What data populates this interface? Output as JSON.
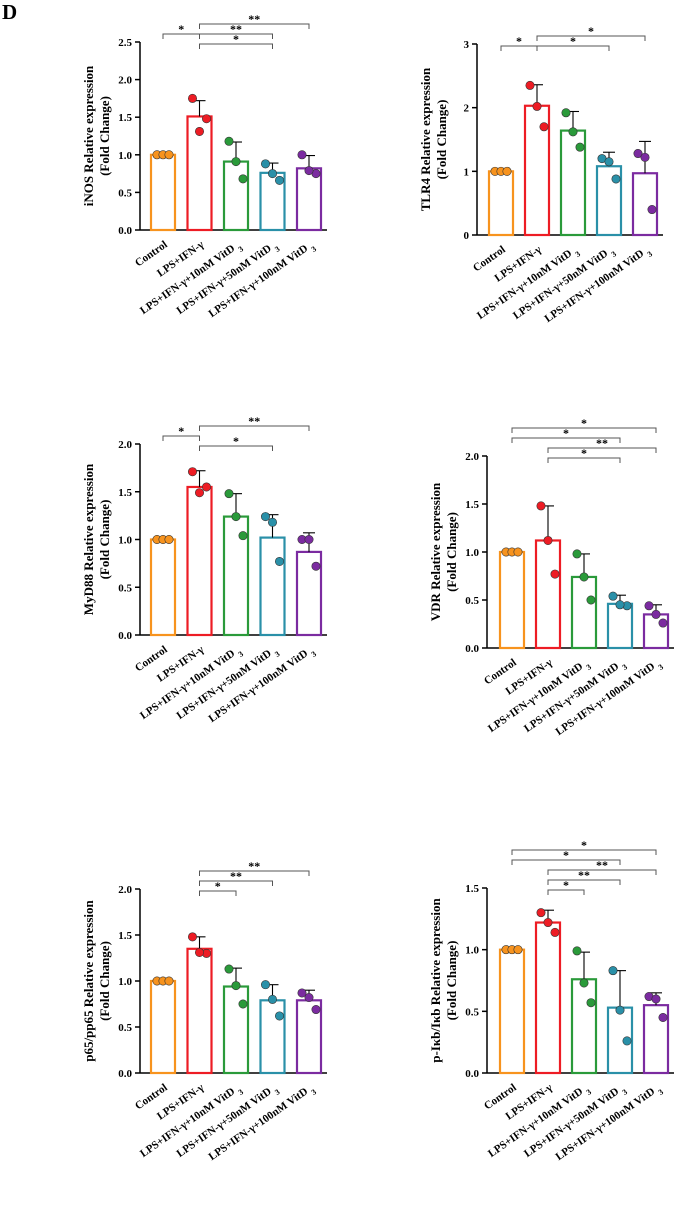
{
  "panel_label": "D",
  "group_colors": [
    "#f7931e",
    "#ed1c24",
    "#2a9a3a",
    "#2a90a8",
    "#7b2ba0"
  ],
  "chart_data": [
    {
      "type": "bar",
      "ylabel": "iNOS Relative expression",
      "ylabel2": "(Fold  Change)",
      "categories": [
        "Control",
        "LPS+IFN-γ",
        "LPS+IFN-γ+10nM VitD 3",
        "LPS+IFN-γ+50nM VitD 3",
        "LPS+IFN-γ+100nM VitD 3"
      ],
      "values": [
        1.0,
        1.51,
        0.91,
        0.76,
        0.82
      ],
      "errors": [
        0.0,
        0.21,
        0.26,
        0.13,
        0.17
      ],
      "points": [
        [
          1.0,
          1.0,
          1.0
        ],
        [
          1.75,
          1.48,
          1.31
        ],
        [
          1.18,
          0.68,
          0.91
        ],
        [
          0.88,
          0.66,
          0.75
        ],
        [
          1.0,
          0.75,
          0.79
        ]
      ],
      "ylim": [
        0,
        2.5
      ],
      "yticks": [
        0.0,
        0.5,
        1.0,
        1.5,
        2.0,
        2.5
      ],
      "tick_labels": [
        "0.0",
        "0.5",
        "1.0",
        "1.5",
        "2.0",
        "2.5"
      ],
      "comparisons": [
        {
          "from": 0,
          "to": 1,
          "label": "*",
          "level": 1
        },
        {
          "from": 1,
          "to": 3,
          "label": "*",
          "level": 0
        },
        {
          "from": 1,
          "to": 3,
          "label": "**",
          "level": 1
        },
        {
          "from": 1,
          "to": 4,
          "label": "**",
          "level": 2
        }
      ]
    },
    {
      "type": "bar",
      "ylabel": "TLR4 Relative expression",
      "ylabel2": "(Fold  Change)",
      "categories": [
        "Control",
        "LPS+IFN-γ",
        "LPS+IFN-γ+10nM VitD 3",
        "LPS+IFN-γ+50nM VitD 3",
        "LPS+IFN-γ+100nM VitD 3"
      ],
      "values": [
        1.0,
        2.03,
        1.64,
        1.08,
        0.97
      ],
      "errors": [
        0.0,
        0.33,
        0.3,
        0.22,
        0.5
      ],
      "points": [
        [
          1.0,
          1.0,
          1.0
        ],
        [
          2.35,
          1.7,
          2.02
        ],
        [
          1.92,
          1.38,
          1.62
        ],
        [
          1.2,
          0.88,
          1.15
        ],
        [
          1.28,
          0.4,
          1.22
        ]
      ],
      "ylim": [
        0,
        3
      ],
      "yticks": [
        0,
        1,
        2,
        3
      ],
      "tick_labels": [
        "0",
        "1",
        "2",
        "3"
      ],
      "comparisons": [
        {
          "from": 0,
          "to": 1,
          "label": "*",
          "level": 0
        },
        {
          "from": 1,
          "to": 3,
          "label": "*",
          "level": 0
        },
        {
          "from": 1,
          "to": 4,
          "label": "*",
          "level": 1
        }
      ]
    },
    {
      "type": "bar",
      "ylabel": "MyD88 Relative expression",
      "ylabel2": "(Fold  Change)",
      "categories": [
        "Control",
        "LPS+IFN-γ",
        "LPS+IFN-γ+10nM VitD 3",
        "LPS+IFN-γ+50nM VitD 3",
        "LPS+IFN-γ+100nM VitD 3"
      ],
      "values": [
        1.0,
        1.55,
        1.24,
        1.02,
        0.87
      ],
      "errors": [
        0.0,
        0.17,
        0.24,
        0.24,
        0.2
      ],
      "points": [
        [
          1.0,
          1.0,
          1.0
        ],
        [
          1.71,
          1.55,
          1.49
        ],
        [
          1.48,
          1.04,
          1.24
        ],
        [
          1.24,
          0.77,
          1.18
        ],
        [
          1.0,
          0.72,
          1.0
        ]
      ],
      "ylim": [
        0,
        2.0
      ],
      "yticks": [
        0.0,
        0.5,
        1.0,
        1.5,
        2.0
      ],
      "tick_labels": [
        "0.0",
        "0.5",
        "1.0",
        "1.5",
        "2.0"
      ],
      "comparisons": [
        {
          "from": 0,
          "to": 1,
          "label": "*",
          "level": 1
        },
        {
          "from": 1,
          "to": 3,
          "label": "*",
          "level": 0
        },
        {
          "from": 1,
          "to": 4,
          "label": "**",
          "level": 2
        }
      ]
    },
    {
      "type": "bar",
      "ylabel": "VDR Relative expression",
      "ylabel2": "(Fold  Change)",
      "categories": [
        "Control",
        "LPS+IFN-γ",
        "LPS+IFN-γ+10nM VitD 3",
        "LPS+IFN-γ+50nM VitD 3",
        "LPS+IFN-γ+100nM VitD 3"
      ],
      "values": [
        1.0,
        1.12,
        0.74,
        0.46,
        0.35
      ],
      "errors": [
        0.0,
        0.36,
        0.24,
        0.09,
        0.1
      ],
      "points": [
        [
          1.0,
          1.0,
          1.0
        ],
        [
          1.48,
          0.77,
          1.12
        ],
        [
          0.98,
          0.5,
          0.74
        ],
        [
          0.54,
          0.44,
          0.45
        ],
        [
          0.44,
          0.26,
          0.35
        ]
      ],
      "ylim": [
        0,
        2.0
      ],
      "yticks": [
        0.0,
        0.5,
        1.0,
        1.5,
        2.0
      ],
      "tick_labels": [
        "0.0",
        "0.5",
        "1.0",
        "1.5",
        "2.0"
      ],
      "comparisons": [
        {
          "from": 1,
          "to": 3,
          "label": "*",
          "level": 0
        },
        {
          "from": 1,
          "to": 4,
          "label": "**",
          "level": 1
        },
        {
          "from": 0,
          "to": 3,
          "label": "*",
          "level": 2
        },
        {
          "from": 0,
          "to": 4,
          "label": "*",
          "level": 3
        }
      ]
    },
    {
      "type": "bar",
      "ylabel": "p65/pp65 Relative expression",
      "ylabel2": "(Fold  Change)",
      "categories": [
        "Control",
        "LPS+IFN-γ",
        "LPS+IFN-γ+10nM VitD 3",
        "LPS+IFN-γ+50nM VitD 3",
        "LPS+IFN-γ+100nM VitD 3"
      ],
      "values": [
        1.0,
        1.35,
        0.94,
        0.79,
        0.79
      ],
      "errors": [
        0.0,
        0.13,
        0.2,
        0.17,
        0.11
      ],
      "points": [
        [
          1.0,
          1.0,
          1.0
        ],
        [
          1.48,
          1.3,
          1.31
        ],
        [
          1.13,
          0.75,
          0.95
        ],
        [
          0.96,
          0.62,
          0.8
        ],
        [
          0.87,
          0.69,
          0.82
        ]
      ],
      "ylim": [
        0,
        2.0
      ],
      "yticks": [
        0.0,
        0.5,
        1.0,
        1.5,
        2.0
      ],
      "tick_labels": [
        "0.0",
        "0.5",
        "1.0",
        "1.5",
        "2.0"
      ],
      "comparisons": [
        {
          "from": 1,
          "to": 2,
          "label": "*",
          "level": 0
        },
        {
          "from": 1,
          "to": 3,
          "label": "**",
          "level": 1
        },
        {
          "from": 1,
          "to": 4,
          "label": "**",
          "level": 2
        }
      ]
    },
    {
      "type": "bar",
      "ylabel": "p-Iκb/Iκb Relative expression",
      "ylabel2": "(Fold  Change)",
      "categories": [
        "Control",
        "LPS+IFN-γ",
        "LPS+IFN-γ+10nM VitD 3",
        "LPS+IFN-γ+50nM VitD 3",
        "LPS+IFN-γ+100nM VitD 3"
      ],
      "values": [
        1.0,
        1.22,
        0.76,
        0.53,
        0.55
      ],
      "errors": [
        0.0,
        0.1,
        0.22,
        0.3,
        0.1
      ],
      "points": [
        [
          1.0,
          1.0,
          1.0
        ],
        [
          1.3,
          1.14,
          1.22
        ],
        [
          0.99,
          0.57,
          0.73
        ],
        [
          0.83,
          0.26,
          0.51
        ],
        [
          0.62,
          0.45,
          0.6
        ]
      ],
      "ylim": [
        0,
        1.5
      ],
      "yticks": [
        0.0,
        0.5,
        1.0,
        1.5
      ],
      "tick_labels": [
        "0.0",
        "0.5",
        "1.0",
        "1.5"
      ],
      "comparisons": [
        {
          "from": 1,
          "to": 2,
          "label": "*",
          "level": 0
        },
        {
          "from": 1,
          "to": 3,
          "label": "**",
          "level": 1
        },
        {
          "from": 1,
          "to": 4,
          "label": "**",
          "level": 2
        },
        {
          "from": 0,
          "to": 3,
          "label": "*",
          "level": 3
        },
        {
          "from": 0,
          "to": 4,
          "label": "*",
          "level": 4
        }
      ]
    }
  ]
}
